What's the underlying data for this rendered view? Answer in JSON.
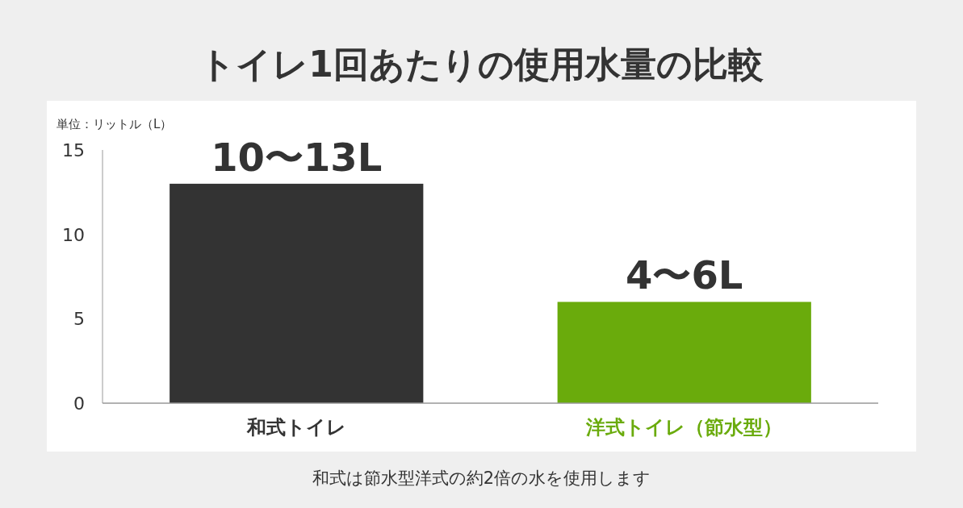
{
  "chart_data": {
    "type": "bar",
    "title": "トイレ1回あたりの使用水量の比較",
    "ylabel": "単位：リットル（L）",
    "categories": [
      "和式トイレ",
      "洋式トイレ（節水型）"
    ],
    "values": [
      13,
      6
    ],
    "colors": [
      "#333333",
      "#6aab0c"
    ],
    "value_labels": [
      "10〜13L",
      "4〜6L"
    ],
    "ylim": [
      0,
      15
    ],
    "yticks": [
      0,
      5,
      10,
      15
    ],
    "annotations": [
      "和式は節水型洋式の約2倍の水を使用します"
    ]
  }
}
